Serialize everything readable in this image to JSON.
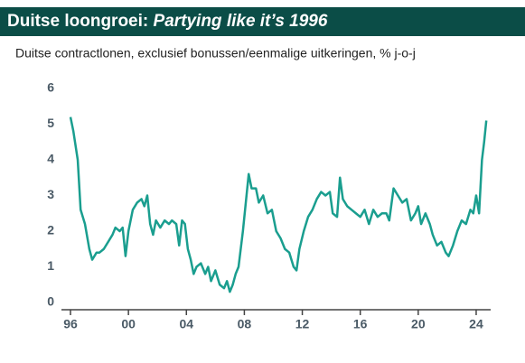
{
  "chart_data": {
    "type": "line",
    "title": "Duitse loongroei:",
    "title_italic": "Partying like it’s 1996",
    "subtitle": "Duitse contractlonen, exclusief bonussen/eenmalige uitkeringen, % j-o-j",
    "x": [
      1996.0,
      1996.2,
      1996.5,
      1996.7,
      1997.0,
      1997.3,
      1997.5,
      1997.8,
      1998.0,
      1998.3,
      1998.6,
      1998.9,
      1999.1,
      1999.4,
      1999.6,
      1999.8,
      2000.0,
      2000.3,
      2000.6,
      2000.9,
      2001.1,
      2001.3,
      2001.5,
      2001.7,
      2001.9,
      2002.2,
      2002.5,
      2002.8,
      2003.0,
      2003.3,
      2003.5,
      2003.7,
      2003.9,
      2004.1,
      2004.3,
      2004.5,
      2004.7,
      2005.0,
      2005.3,
      2005.5,
      2005.7,
      2006.0,
      2006.3,
      2006.6,
      2006.8,
      2007.0,
      2007.2,
      2007.4,
      2007.6,
      2007.9,
      2008.1,
      2008.3,
      2008.5,
      2008.8,
      2009.0,
      2009.3,
      2009.6,
      2009.9,
      2010.2,
      2010.5,
      2010.8,
      2011.1,
      2011.4,
      2011.6,
      2011.8,
      2012.1,
      2012.4,
      2012.7,
      2013.0,
      2013.3,
      2013.6,
      2013.9,
      2014.1,
      2014.4,
      2014.6,
      2014.8,
      2015.1,
      2015.4,
      2015.7,
      2016.0,
      2016.3,
      2016.6,
      2016.9,
      2017.2,
      2017.5,
      2017.8,
      2018.0,
      2018.3,
      2018.6,
      2018.9,
      2019.2,
      2019.5,
      2019.8,
      2020.0,
      2020.2,
      2020.5,
      2020.8,
      2021.0,
      2021.3,
      2021.6,
      2021.9,
      2022.1,
      2022.4,
      2022.7,
      2023.0,
      2023.3,
      2023.6,
      2023.8,
      2024.0,
      2024.2,
      2024.4,
      2024.55,
      2024.7
    ],
    "series": [
      {
        "color": "#1a9e8f",
        "values": [
          5.2,
          4.8,
          4.0,
          2.6,
          2.2,
          1.5,
          1.2,
          1.4,
          1.4,
          1.5,
          1.7,
          1.9,
          2.1,
          2.0,
          2.1,
          1.3,
          2.0,
          2.6,
          2.8,
          2.9,
          2.7,
          3.0,
          2.2,
          1.9,
          2.3,
          2.1,
          2.3,
          2.2,
          2.3,
          2.2,
          1.6,
          2.3,
          2.2,
          1.5,
          1.2,
          0.8,
          1.0,
          1.1,
          0.8,
          1.0,
          0.6,
          0.9,
          0.5,
          0.4,
          0.6,
          0.3,
          0.5,
          0.8,
          1.0,
          2.0,
          2.8,
          3.6,
          3.2,
          3.2,
          2.8,
          3.0,
          2.5,
          2.6,
          2.0,
          1.8,
          1.5,
          1.4,
          1.0,
          0.9,
          1.5,
          2.0,
          2.4,
          2.6,
          2.9,
          3.1,
          3.0,
          3.1,
          2.5,
          2.4,
          3.5,
          2.9,
          2.7,
          2.6,
          2.5,
          2.4,
          2.6,
          2.2,
          2.6,
          2.4,
          2.5,
          2.5,
          2.3,
          3.2,
          3.0,
          2.8,
          2.9,
          2.3,
          2.5,
          2.7,
          2.2,
          2.5,
          2.2,
          1.9,
          1.6,
          1.7,
          1.4,
          1.3,
          1.6,
          2.0,
          2.3,
          2.2,
          2.6,
          2.5,
          3.0,
          2.5,
          4.0,
          4.5,
          5.1
        ]
      }
    ],
    "xlim": [
      1996,
      2025
    ],
    "xticks": [
      {
        "value": 1996,
        "label": "96"
      },
      {
        "value": 2000,
        "label": "00"
      },
      {
        "value": 2004,
        "label": "04"
      },
      {
        "value": 2008,
        "label": "08"
      },
      {
        "value": 2012,
        "label": "12"
      },
      {
        "value": 2016,
        "label": "16"
      },
      {
        "value": 2020,
        "label": "20"
      },
      {
        "value": 2024,
        "label": "24"
      }
    ],
    "ylim": [
      0,
      6
    ],
    "yticks": [
      0,
      1,
      2,
      3,
      4,
      5,
      6
    ]
  }
}
